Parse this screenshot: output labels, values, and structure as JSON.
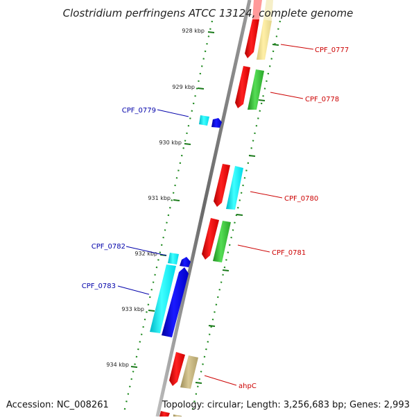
{
  "title": "Clostridium perfringens ATCC 13124, complete genome",
  "accession": "Accession: NC_008261",
  "topology": "Topology: circular; Length: 3,256,683 bp; Genes: 2,993",
  "ticks": [
    {
      "label": "928 kbp"
    },
    {
      "label": "929 kbp"
    },
    {
      "label": "930 kbp"
    },
    {
      "label": "931 kbp"
    },
    {
      "label": "932 kbp"
    },
    {
      "label": "933 kbp"
    },
    {
      "label": "934 kbp"
    }
  ],
  "gene_labels": [
    {
      "name": "CPF_0777",
      "strand": "forward",
      "color": "#cc0000"
    },
    {
      "name": "CPF_0778",
      "strand": "forward",
      "color": "#cc0000"
    },
    {
      "name": "CPF_0779",
      "strand": "reverse",
      "color": "#0000aa"
    },
    {
      "name": "CPF_0780",
      "strand": "forward",
      "color": "#cc0000"
    },
    {
      "name": "CPF_0781",
      "strand": "forward",
      "color": "#cc0000"
    },
    {
      "name": "CPF_0782",
      "strand": "reverse",
      "color": "#0000aa"
    },
    {
      "name": "CPF_0783",
      "strand": "reverse",
      "color": "#0000aa"
    },
    {
      "name": "ahpC",
      "strand": "forward",
      "color": "#cc0000"
    }
  ],
  "colors": {
    "backbone": "#888888",
    "tick_mark": "#1a7a1a",
    "dots": "#1f8a1f",
    "cds_red": "#ff0000",
    "cds_blue": "#0000ff",
    "cds_cyan": "#00ffff",
    "cds_green": "#33cc33",
    "cds_yellow": "#f0e68c",
    "cds_olive": "#c2b280"
  }
}
